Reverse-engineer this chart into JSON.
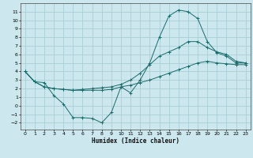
{
  "xlabel": "Humidex (Indice chaleur)",
  "bg_color": "#cce8ee",
  "grid_color": "#aacdd6",
  "line_color": "#1a6b6b",
  "line1_x": [
    0,
    1,
    2,
    3,
    4,
    5,
    6,
    7,
    8,
    9,
    10,
    11,
    12,
    13,
    14,
    15,
    16,
    17,
    18,
    19,
    20,
    21,
    22,
    23
  ],
  "line1_y": [
    4.0,
    2.8,
    2.7,
    1.2,
    0.2,
    -1.4,
    -1.4,
    -1.5,
    -2.0,
    -0.8,
    2.2,
    1.5,
    3.0,
    5.0,
    8.0,
    10.5,
    11.2,
    11.0,
    10.2,
    7.5,
    6.2,
    5.8,
    5.0,
    5.0
  ],
  "line2_x": [
    0,
    1,
    2,
    3,
    4,
    5,
    6,
    7,
    8,
    9,
    10,
    11,
    12,
    13,
    14,
    15,
    16,
    17,
    18,
    19,
    20,
    21,
    22,
    23
  ],
  "line2_y": [
    4.0,
    2.8,
    2.2,
    2.0,
    1.9,
    1.8,
    1.8,
    1.8,
    1.8,
    1.9,
    2.2,
    2.4,
    2.7,
    3.0,
    3.4,
    3.8,
    4.2,
    4.6,
    5.0,
    5.2,
    5.0,
    4.9,
    4.8,
    4.8
  ],
  "line3_x": [
    0,
    1,
    2,
    3,
    4,
    5,
    6,
    7,
    8,
    9,
    10,
    11,
    12,
    13,
    14,
    15,
    16,
    17,
    18,
    19,
    20,
    21,
    22,
    23
  ],
  "line3_y": [
    4.0,
    2.8,
    2.2,
    2.0,
    1.9,
    1.8,
    1.9,
    2.0,
    2.1,
    2.2,
    2.5,
    3.0,
    3.8,
    4.8,
    5.8,
    6.3,
    6.8,
    7.5,
    7.5,
    6.8,
    6.3,
    6.0,
    5.2,
    5.0
  ],
  "ylim": [
    -2.8,
    12.0
  ],
  "yticks": [
    -2,
    -1,
    0,
    1,
    2,
    3,
    4,
    5,
    6,
    7,
    8,
    9,
    10,
    11
  ],
  "xlim": [
    -0.5,
    23.5
  ],
  "xticks": [
    0,
    1,
    2,
    3,
    4,
    5,
    6,
    7,
    8,
    9,
    10,
    11,
    12,
    13,
    14,
    15,
    16,
    17,
    18,
    19,
    20,
    21,
    22,
    23
  ]
}
